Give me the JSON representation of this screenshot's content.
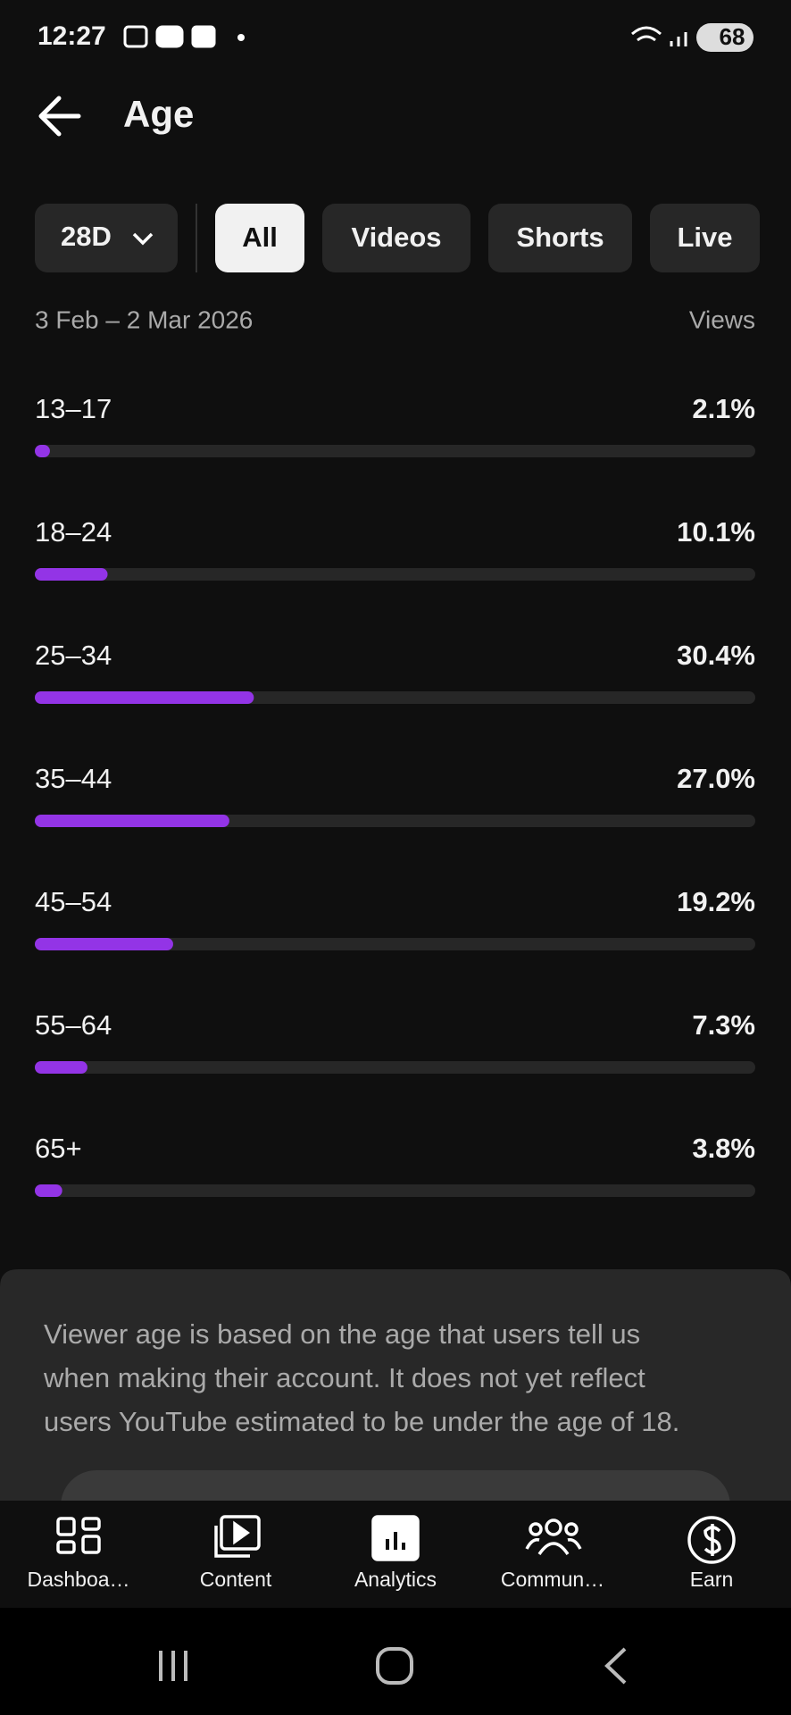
{
  "status_bar": {
    "time": "12:27",
    "battery": "68"
  },
  "header": {
    "title": "Age"
  },
  "filters": {
    "period": "28D",
    "chips": [
      "All",
      "Videos",
      "Shorts",
      "Live"
    ]
  },
  "chart_data": {
    "type": "bar",
    "subtitle": "3 Feb – 2 Mar 2026",
    "value_axis_label": "Views",
    "categories": [
      "13–17",
      "18–24",
      "25–34",
      "35–44",
      "45–54",
      "55–64",
      "65+"
    ],
    "values": [
      2.1,
      10.1,
      30.4,
      27.0,
      19.2,
      7.3,
      3.8
    ],
    "value_labels": [
      "2.1%",
      "10.1%",
      "30.4%",
      "27.0%",
      "19.2%",
      "7.3%",
      "3.8%"
    ],
    "ylim": [
      0,
      100
    ],
    "color": "#9334e6"
  },
  "note": {
    "lines": [
      "Viewer age is based on the age that users tell us",
      "when making their account. It does not yet reflect",
      "users YouTube estimated to be under the age of 18."
    ]
  },
  "nav": [
    "Dashboa…",
    "Content",
    "Analytics",
    "Commun…",
    "Earn"
  ]
}
